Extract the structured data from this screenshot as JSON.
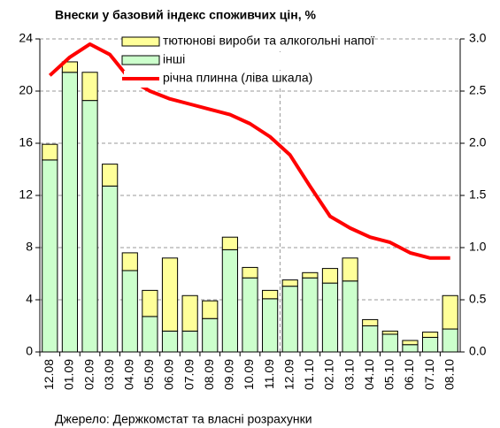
{
  "chart_data": {
    "type": "bar_line",
    "title": "Внески у базовий індекс споживчих цін, %",
    "source": "Джерело: Держкомстат та власні розрахунки",
    "categories": [
      "12.08",
      "01.09",
      "02.09",
      "03.09",
      "04.09",
      "05.09",
      "06.09",
      "07.09",
      "08.09",
      "09.09",
      "10.09",
      "11.09",
      "12.09",
      "01.10",
      "02.10",
      "03.10",
      "04.10",
      "05.10",
      "06.10",
      "07.10",
      "08.10"
    ],
    "series": [
      {
        "name": "інші",
        "type": "bar",
        "axis": "y2",
        "color": "#ccffcc",
        "values": [
          1.84,
          2.68,
          2.41,
          1.59,
          0.78,
          0.34,
          0.2,
          0.2,
          0.32,
          0.98,
          0.71,
          0.51,
          0.63,
          0.71,
          0.66,
          0.68,
          0.25,
          0.17,
          0.07,
          0.14,
          0.22
        ]
      },
      {
        "name": "тютюнові вироби та алкогольні напої",
        "type": "bar",
        "axis": "y2",
        "color": "#ffff99",
        "values": [
          0.15,
          0.1,
          0.27,
          0.21,
          0.17,
          0.25,
          0.7,
          0.34,
          0.17,
          0.12,
          0.1,
          0.08,
          0.06,
          0.05,
          0.14,
          0.22,
          0.06,
          0.03,
          0.04,
          0.05,
          0.32
        ]
      },
      {
        "name": "річна плинна (ліва шкала)",
        "type": "line",
        "axis": "y",
        "color": "#ff0000",
        "values": [
          21.2,
          22.6,
          23.6,
          22.8,
          20.9,
          20.0,
          19.4,
          19.0,
          18.6,
          18.2,
          17.5,
          16.5,
          15.1,
          12.7,
          10.4,
          9.5,
          8.8,
          8.4,
          7.6,
          7.2,
          7.2
        ]
      }
    ],
    "ylim": [
      0,
      24
    ],
    "yticks": [
      0,
      4,
      8,
      12,
      16,
      20,
      24
    ],
    "y2lim": [
      0,
      3
    ],
    "y2ticks": [
      {
        "value": 0,
        "label": "0.0"
      },
      0.5,
      {
        "value": 1,
        "label": "1.0"
      },
      1.5,
      {
        "value": 2,
        "label": "2.0"
      },
      2.5,
      {
        "value": 3,
        "label": "3.0"
      }
    ],
    "grid": true
  }
}
